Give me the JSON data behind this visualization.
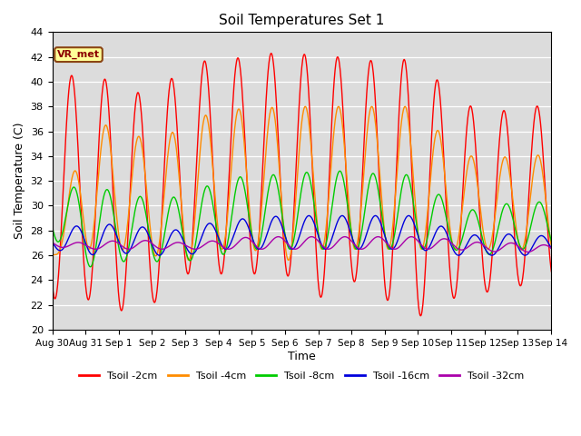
{
  "title": "Soil Temperatures Set 1",
  "xlabel": "Time",
  "ylabel": "Soil Temperature (C)",
  "ylim": [
    20,
    44
  ],
  "yticks": [
    20,
    22,
    24,
    26,
    28,
    30,
    32,
    34,
    36,
    38,
    40,
    42,
    44
  ],
  "background_color": "#dcdcdc",
  "annotation_text": "VR_met",
  "series_labels": [
    "Tsoil -2cm",
    "Tsoil -4cm",
    "Tsoil -8cm",
    "Tsoil -16cm",
    "Tsoil -32cm"
  ],
  "series_colors": [
    "#ff0000",
    "#ff8c00",
    "#00cc00",
    "#0000dd",
    "#aa00aa"
  ],
  "x_tick_labels": [
    "Aug 30",
    "Aug 31",
    "Sep 1",
    "Sep 2",
    "Sep 3",
    "Sep 4",
    "Sep 5",
    "Sep 6",
    "Sep 7",
    "Sep 8",
    "Sep 9",
    "Sep 10",
    "Sep 11",
    "Sep 12",
    "Sep 13",
    "Sep 14"
  ],
  "x_tick_positions": [
    0,
    1,
    2,
    3,
    4,
    5,
    6,
    7,
    8,
    9,
    10,
    11,
    12,
    13,
    14,
    15
  ],
  "red_peaks": [
    40.5,
    40.5,
    40.0,
    38.5,
    41.5,
    41.8,
    42.0,
    42.5,
    42.0,
    42.0,
    41.5,
    42.0,
    38.8,
    37.5,
    37.8,
    38.2
  ],
  "red_mins": [
    22.5,
    22.5,
    21.5,
    22.0,
    24.5,
    24.5,
    24.5,
    24.5,
    22.5,
    24.0,
    22.5,
    21.0,
    22.5,
    23.0,
    23.5,
    24.0
  ],
  "orange_peaks": [
    26.0,
    36.5,
    36.5,
    35.0,
    36.5,
    37.8,
    37.8,
    38.0,
    38.0,
    38.0,
    38.0,
    38.0,
    34.8,
    33.5,
    34.2,
    34.0
  ],
  "orange_mins": [
    26.0,
    26.5,
    26.5,
    26.0,
    25.5,
    26.5,
    26.5,
    25.5,
    26.5,
    26.5,
    26.5,
    26.5,
    26.5,
    26.5,
    26.5,
    26.0
  ],
  "green_peaks": [
    31.5,
    31.5,
    31.2,
    30.5,
    30.8,
    32.0,
    32.5,
    32.5,
    32.8,
    32.8,
    32.5,
    32.5,
    30.0,
    29.5,
    30.5,
    30.2
  ],
  "green_mins": [
    27.5,
    25.0,
    25.5,
    25.5,
    25.5,
    26.0,
    26.5,
    26.5,
    26.5,
    26.5,
    26.5,
    26.5,
    26.5,
    26.0,
    26.5,
    26.5
  ],
  "blue_peaks": [
    28.0,
    28.5,
    28.5,
    28.2,
    28.0,
    28.8,
    29.0,
    29.2,
    29.2,
    29.2,
    29.2,
    29.2,
    28.0,
    27.5,
    27.8,
    27.5
  ],
  "blue_mins": [
    26.5,
    26.0,
    26.2,
    26.0,
    26.0,
    26.5,
    26.5,
    26.5,
    26.5,
    26.5,
    26.5,
    26.5,
    26.0,
    26.0,
    26.0,
    26.0
  ],
  "purple_peaks": [
    27.2,
    27.0,
    27.2,
    27.2,
    27.0,
    27.2,
    27.5,
    27.5,
    27.5,
    27.5,
    27.5,
    27.5,
    27.3,
    27.0,
    27.0,
    26.8
  ],
  "purple_mins": [
    26.7,
    26.5,
    26.5,
    26.5,
    26.5,
    26.5,
    26.5,
    26.5,
    26.5,
    26.5,
    26.5,
    26.5,
    26.5,
    26.3,
    26.3,
    26.2
  ]
}
